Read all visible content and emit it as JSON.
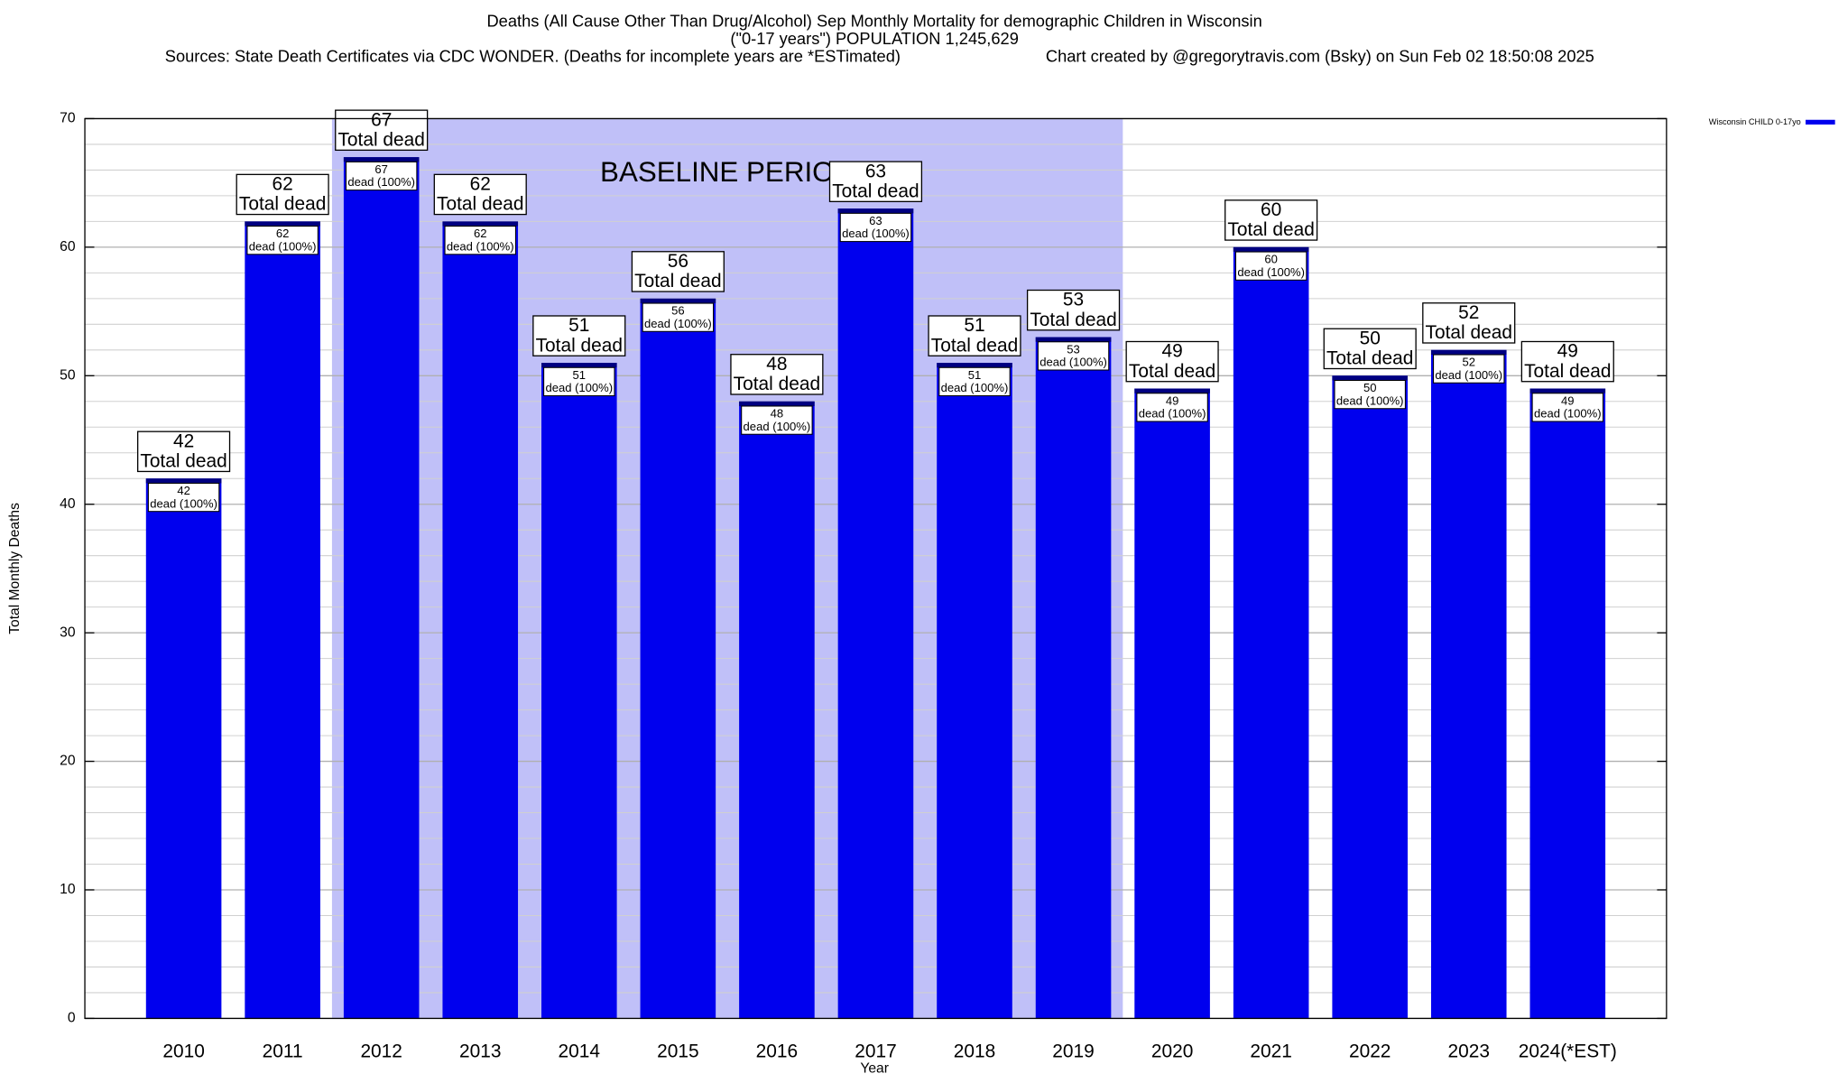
{
  "chart_data": {
    "type": "bar",
    "title": "Deaths (All Cause Other Than Drug/Alcohol) Sep Monthly Mortality for demographic Children in Wisconsin",
    "subtitle": "(\"0-17 years\") POPULATION 1,245,629",
    "source": "Sources: State Death Certificates via CDC WONDER. (Deaths for incomplete years are *ESTimated)",
    "credit": "Chart created by @gregorytravis.com (Bsky) on Sun Feb 02 18:50:08 2025",
    "x_label": "Year",
    "y_label": "Total Monthly Deaths",
    "categories": [
      "2010",
      "2011",
      "2012",
      "2013",
      "2014",
      "2015",
      "2016",
      "2017",
      "2018",
      "2019",
      "2020",
      "2021",
      "2022",
      "2023",
      "2024(*EST)"
    ],
    "series": [
      {
        "name": "Wisconsin CHILD 0-17yo",
        "color": "#0000ee",
        "values": [
          42,
          62,
          67,
          62,
          51,
          56,
          48,
          63,
          51,
          53,
          49,
          60,
          50,
          52,
          49
        ]
      }
    ],
    "total_label": "Total dead",
    "share_label": "dead (100%)",
    "baseline": {
      "label": "BASELINE PERIOD",
      "from": "2012",
      "to": "2019",
      "color": "#c0c0f8"
    },
    "ylim": [
      0,
      70
    ],
    "yticks": [
      0,
      10,
      20,
      30,
      40,
      50,
      60,
      70
    ],
    "yminorticks": [
      2,
      4,
      6,
      8,
      12,
      14,
      16,
      18,
      22,
      24,
      26,
      28,
      32,
      34,
      36,
      38,
      42,
      44,
      46,
      48,
      52,
      54,
      56,
      58,
      62,
      64,
      66,
      68
    ],
    "grid": true,
    "legend": "top-right"
  }
}
